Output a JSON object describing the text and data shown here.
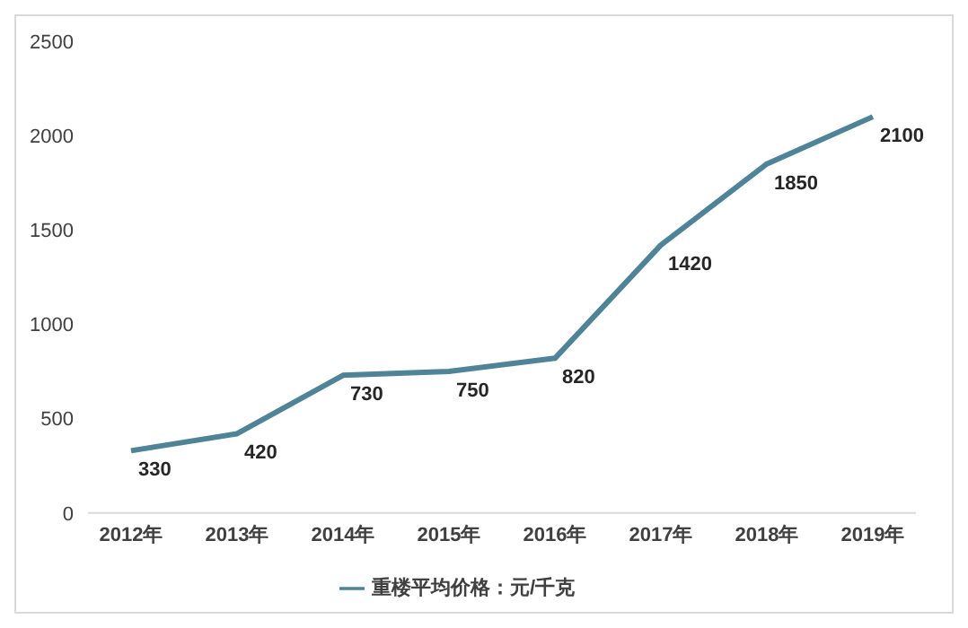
{
  "chart_data": {
    "type": "line",
    "categories": [
      "2012年",
      "2013年",
      "2014年",
      "2015年",
      "2016年",
      "2017年",
      "2018年",
      "2019年"
    ],
    "series": [
      {
        "name": "重楼平均价格：元/千克",
        "color": "#4e8398",
        "values": [
          330,
          420,
          730,
          750,
          820,
          1420,
          1850,
          2100
        ]
      }
    ],
    "ylim": [
      0,
      2500
    ],
    "yticks": [
      0,
      500,
      1000,
      1500,
      2000,
      2500
    ],
    "grid": false,
    "legend": "bottom",
    "data_labels": true,
    "marker": "none",
    "line_style": "solid"
  }
}
